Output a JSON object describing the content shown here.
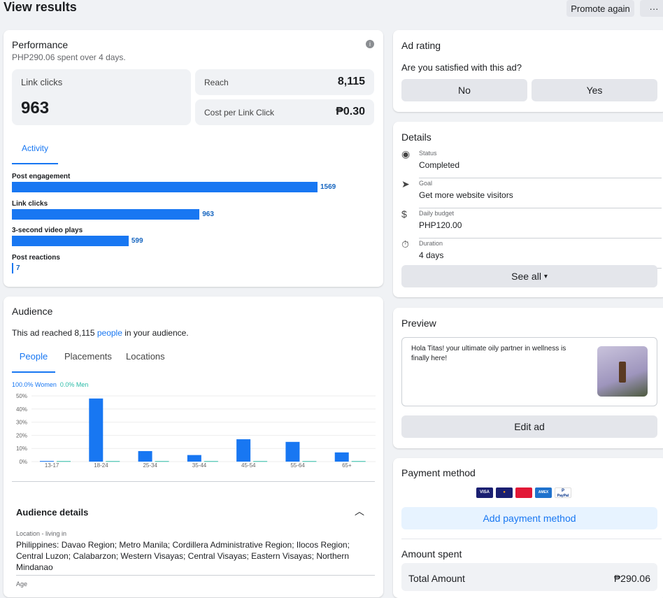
{
  "header": {
    "title": "View results",
    "promote_label": "Promote again",
    "more_label": "···"
  },
  "performance": {
    "title": "Performance",
    "subtitle": "PHP290.06 spent over 4 days.",
    "link_clicks_label": "Link clicks",
    "link_clicks_value": "963",
    "reach_label": "Reach",
    "reach_value": "8,115",
    "cpc_label": "Cost per Link Click",
    "cpc_value": "₱0.30",
    "activity_tab": "Activity",
    "activity": [
      {
        "label": "Post engagement",
        "value": 1569,
        "text": "1569"
      },
      {
        "label": "Link clicks",
        "value": 963,
        "text": "963"
      },
      {
        "label": "3-second video plays",
        "value": 599,
        "text": "599"
      },
      {
        "label": "Post reactions",
        "value": 7,
        "text": "7"
      }
    ]
  },
  "audience": {
    "title": "Audience",
    "reached_prefix": "This ad reached 8,115 ",
    "reached_link": "people",
    "reached_suffix": " in your audience.",
    "tabs": [
      "People",
      "Placements",
      "Locations"
    ],
    "details_title": "Audience details",
    "location_label": "Location - living in",
    "location_value": "Philippines: Davao Region; Metro Manila; Cordillera Administrative Region; Ilocos Region; Central Luzon; Calabarzon; Western Visayas; Central Visayas; Eastern Visayas; Northern Mindanao",
    "age_label": "Age"
  },
  "chart_data": {
    "type": "bar",
    "categories": [
      "13-17",
      "18-24",
      "25-34",
      "35-44",
      "45-54",
      "55-64",
      "65+"
    ],
    "series": [
      {
        "name": "100.0% Women",
        "color": "#1877f2",
        "values": [
          0.5,
          48,
          8,
          5,
          17,
          15,
          7
        ]
      },
      {
        "name": "0.0% Men",
        "color": "#2abba7",
        "values": [
          0.4,
          0.4,
          0.4,
          0.4,
          0.4,
          0.4,
          0.4
        ]
      }
    ],
    "yticks": [
      "50%",
      "40%",
      "30%",
      "20%",
      "10%",
      "0%"
    ],
    "ylim": [
      0,
      50
    ],
    "legend": "top-left"
  },
  "ad_rating": {
    "title": "Ad rating",
    "question": "Are you satisfied with this ad?",
    "no": "No",
    "yes": "Yes"
  },
  "details": {
    "title": "Details",
    "rows": [
      {
        "label": "Status",
        "value": "Completed",
        "icon": "◉"
      },
      {
        "label": "Goal",
        "value": "Get more website visitors",
        "icon": "➤"
      },
      {
        "label": "Daily budget",
        "value": "PHP120.00",
        "icon": "$"
      },
      {
        "label": "Duration",
        "value": "4 days",
        "icon": "⏱"
      }
    ],
    "see_all": "See all"
  },
  "preview": {
    "title": "Preview",
    "text": "Hola Titas! your ultimate oily partner in wellness is finally here!",
    "edit": "Edit ad"
  },
  "payment": {
    "title": "Payment method",
    "cards": [
      "VISA",
      "MC",
      "UP",
      "AMEX",
      "PayPal"
    ],
    "add": "Add payment method",
    "amount_title": "Amount spent",
    "total_label": "Total Amount",
    "total_value": "₱290.06"
  }
}
